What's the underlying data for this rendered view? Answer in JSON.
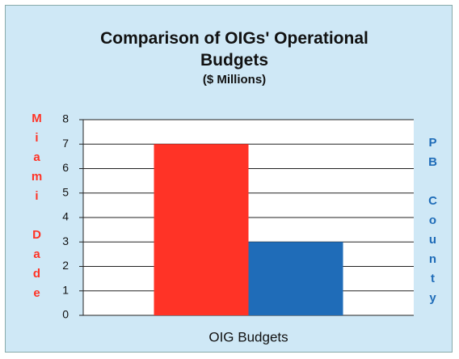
{
  "chart_data": {
    "type": "bar",
    "title": "Comparison of OIGs' Operational Budgets",
    "subtitle": "($ Millions)",
    "x_label": "OIG Budgets",
    "categories": [
      null
    ],
    "series": [
      {
        "name": "Miami Dade",
        "color": "#ff3326",
        "values": [
          7
        ]
      },
      {
        "name": "PB County",
        "color": "#1f6cb8",
        "values": [
          3
        ]
      }
    ],
    "ylim": [
      0,
      8
    ],
    "yticks": [
      0,
      1,
      2,
      3,
      4,
      5,
      6,
      7,
      8
    ],
    "grid": true
  }
}
